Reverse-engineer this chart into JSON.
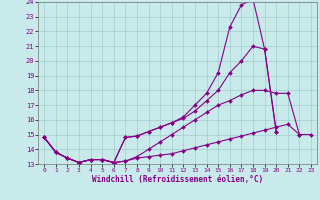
{
  "xlabel": "Windchill (Refroidissement éolien,°C)",
  "bg_color": "#c8eaea",
  "grid_color": "#a0cccc",
  "line_color": "#880088",
  "xlim": [
    -0.5,
    23.5
  ],
  "ylim": [
    13,
    24
  ],
  "yticks": [
    13,
    14,
    15,
    16,
    17,
    18,
    19,
    20,
    21,
    22,
    23,
    24
  ],
  "xticks": [
    0,
    1,
    2,
    3,
    4,
    5,
    6,
    7,
    8,
    9,
    10,
    11,
    12,
    13,
    14,
    15,
    16,
    17,
    18,
    19,
    20,
    21,
    22,
    23
  ],
  "series": [
    {
      "x": [
        0,
        1,
        2,
        3,
        4,
        5,
        6,
        7,
        8,
        9,
        10,
        11,
        12,
        13,
        14,
        15,
        16,
        17,
        18,
        19,
        20,
        21,
        22
      ],
      "y": [
        14.8,
        13.8,
        13.4,
        13.1,
        13.3,
        13.3,
        13.1,
        13.2,
        13.4,
        13.5,
        13.6,
        13.7,
        13.9,
        14.1,
        14.3,
        14.5,
        14.7,
        14.9,
        15.1,
        15.3,
        15.5,
        15.7,
        15.0
      ]
    },
    {
      "x": [
        0,
        1,
        2,
        3,
        4,
        5,
        6,
        7,
        8,
        9,
        10,
        11,
        12,
        13,
        14,
        15,
        16,
        17,
        18,
        19,
        20,
        21,
        22,
        23
      ],
      "y": [
        14.8,
        13.8,
        13.4,
        13.1,
        13.3,
        13.3,
        13.1,
        13.2,
        13.5,
        14.0,
        14.5,
        15.0,
        15.5,
        16.0,
        16.5,
        17.0,
        17.3,
        17.7,
        18.0,
        18.0,
        17.8,
        17.8,
        15.0,
        15.0
      ]
    },
    {
      "x": [
        0,
        1,
        2,
        3,
        4,
        5,
        6,
        7,
        8,
        9,
        10,
        11,
        12,
        13,
        14,
        15,
        16,
        17,
        18,
        19,
        20,
        21
      ],
      "y": [
        14.8,
        13.8,
        13.4,
        13.1,
        13.3,
        13.3,
        13.1,
        14.8,
        14.9,
        15.2,
        15.5,
        15.8,
        16.1,
        16.6,
        17.3,
        18.0,
        19.2,
        20.0,
        21.0,
        20.8,
        15.2,
        null
      ]
    },
    {
      "x": [
        0,
        1,
        2,
        3,
        4,
        5,
        6,
        7,
        8,
        9,
        10,
        11,
        12,
        13,
        14,
        15,
        16,
        17,
        18,
        19,
        20
      ],
      "y": [
        14.8,
        13.8,
        13.4,
        13.1,
        13.3,
        13.3,
        13.1,
        14.8,
        14.9,
        15.2,
        15.5,
        15.8,
        16.2,
        17.0,
        17.8,
        19.2,
        22.3,
        23.8,
        24.2,
        20.8,
        15.2
      ]
    }
  ]
}
